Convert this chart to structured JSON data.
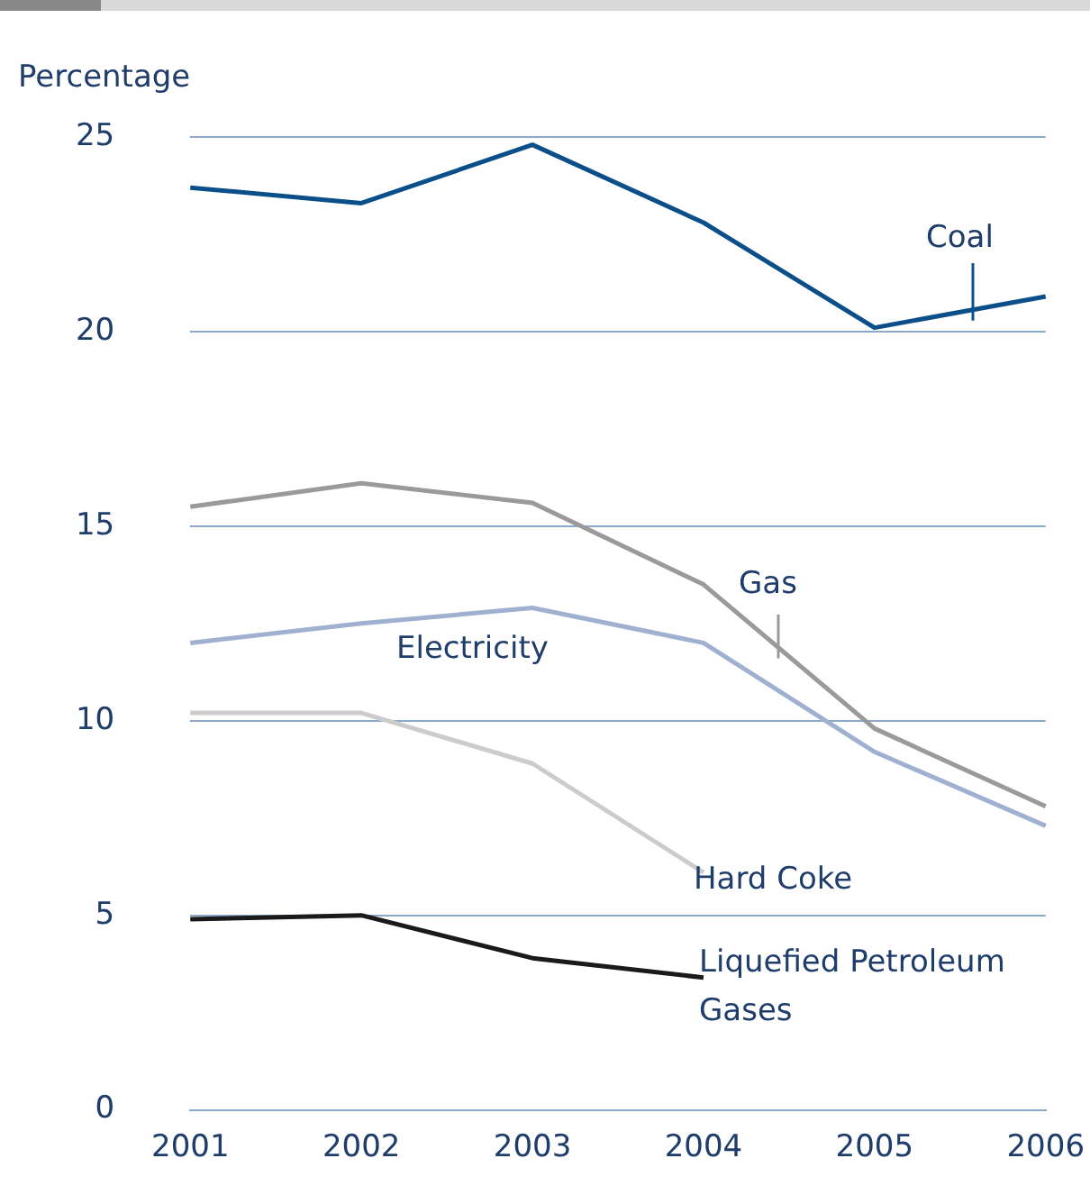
{
  "chart_data": {
    "type": "line",
    "ylabel": "Percentage",
    "categories": [
      "2001",
      "2002",
      "2003",
      "2004",
      "2005",
      "2006"
    ],
    "ylim": [
      0,
      25
    ],
    "yticks": [
      0,
      5,
      10,
      15,
      20,
      25
    ],
    "grid": "y",
    "legend": false,
    "marker": "none",
    "line_style": "solid",
    "series": [
      {
        "name": "Coal",
        "color": "#0b4f8a",
        "values": [
          23.7,
          23.3,
          24.8,
          22.8,
          20.1,
          20.9
        ]
      },
      {
        "name": "Gas",
        "color": "#9a9a9a",
        "values": [
          15.5,
          16.1,
          15.6,
          13.5,
          9.8,
          7.8
        ]
      },
      {
        "name": "Electricity",
        "color": "#9fb0d0",
        "values": [
          12.0,
          12.5,
          12.9,
          12.0,
          9.2,
          7.3
        ]
      },
      {
        "name": "Hard Coke",
        "color": "#cccccc",
        "values": [
          10.2,
          10.2,
          8.9,
          6.1,
          null,
          null
        ]
      },
      {
        "name": "Liquefied Petroleum Gases",
        "color": "#1a1a1a",
        "values": [
          4.9,
          5.0,
          3.9,
          3.4,
          null,
          null
        ]
      }
    ]
  }
}
